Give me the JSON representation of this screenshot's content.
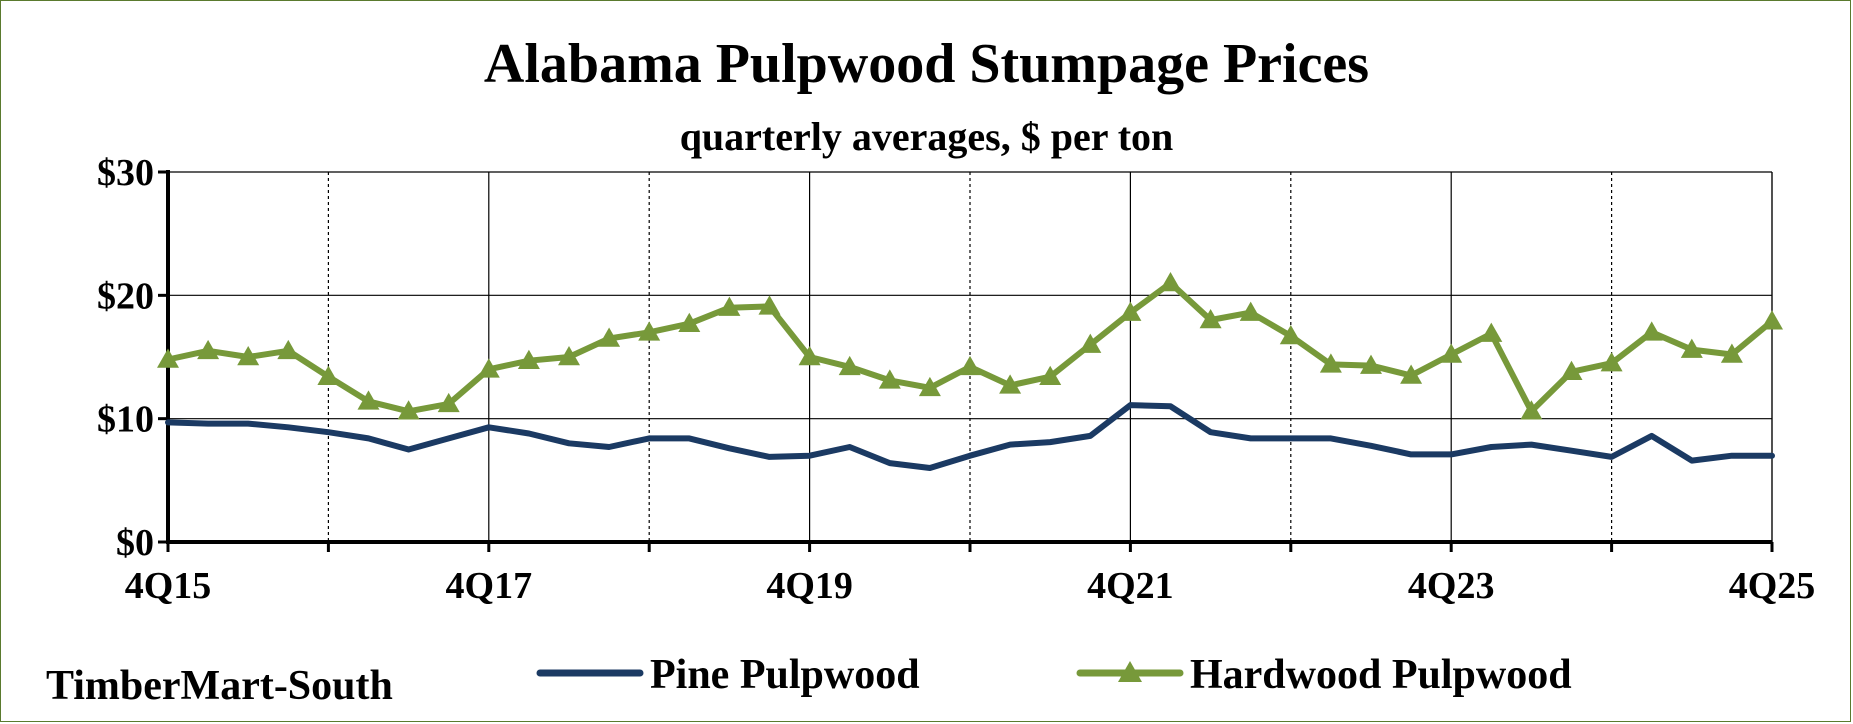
{
  "source_label": "TimberMart-South",
  "colors": {
    "pine": "#1b3a63",
    "hardwood": "#77993a",
    "frame": "#5a7a2e",
    "grid": "#000000"
  },
  "chart_data": {
    "type": "line",
    "title": "Alabama Pulpwood Stumpage Prices",
    "subtitle": "quarterly averages, $ per ton",
    "xlabel": "",
    "ylabel": "",
    "ylim": [
      0,
      30
    ],
    "y_ticks": [
      0,
      10,
      20,
      30
    ],
    "y_tick_labels": [
      "$0",
      "$10",
      "$20",
      "$30"
    ],
    "x_tick_labels": [
      "4Q15",
      "4Q17",
      "4Q19",
      "4Q21",
      "4Q23",
      "4Q25"
    ],
    "grid": true,
    "legend_position": "bottom",
    "x": [
      "4Q15",
      "1Q16",
      "2Q16",
      "3Q16",
      "4Q16",
      "1Q17",
      "2Q17",
      "3Q17",
      "4Q17",
      "1Q18",
      "2Q18",
      "3Q18",
      "4Q18",
      "1Q19",
      "2Q19",
      "3Q19",
      "4Q19",
      "1Q20",
      "2Q20",
      "3Q20",
      "4Q20",
      "1Q21",
      "2Q21",
      "3Q21",
      "4Q21",
      "1Q22",
      "2Q22",
      "3Q22",
      "4Q22",
      "1Q23",
      "2Q23",
      "3Q23",
      "4Q23",
      "1Q24",
      "2Q24",
      "3Q24",
      "4Q24",
      "1Q25",
      "2Q25",
      "3Q25",
      "4Q25"
    ],
    "series": [
      {
        "name": "Pine Pulpwood",
        "marker": "none",
        "values": [
          9.7,
          9.6,
          9.6,
          9.3,
          8.9,
          8.4,
          7.5,
          8.4,
          9.3,
          8.8,
          8.0,
          7.7,
          8.4,
          8.4,
          7.6,
          6.9,
          7.0,
          7.7,
          6.4,
          6.0,
          7.0,
          7.9,
          8.1,
          8.6,
          11.1,
          11.0,
          8.9,
          8.4,
          8.4,
          8.4,
          7.8,
          7.1,
          7.1,
          7.7,
          7.9,
          7.4,
          6.9,
          8.6,
          6.6,
          7.0,
          7.0
        ]
      },
      {
        "name": "Hardwood Pulpwood",
        "marker": "triangle",
        "values": [
          14.8,
          15.5,
          15.0,
          15.5,
          13.4,
          11.4,
          10.6,
          11.2,
          14.0,
          14.7,
          15.0,
          16.5,
          17.0,
          17.7,
          19.0,
          19.1,
          15.0,
          14.2,
          13.1,
          12.5,
          14.2,
          12.7,
          13.4,
          16.0,
          18.6,
          21.0,
          18.0,
          18.6,
          16.7,
          14.4,
          14.3,
          13.5,
          15.2,
          16.9,
          10.6,
          13.8,
          14.5,
          17.0,
          15.6,
          15.2,
          17.9
        ]
      }
    ]
  }
}
